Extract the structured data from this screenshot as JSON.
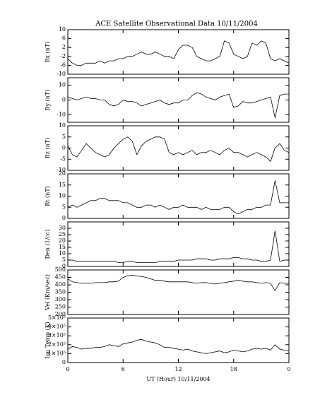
{
  "title": "ACE Satellite Observational Data   10/11/2004",
  "chart_data": [
    {
      "type": "line",
      "ylabel": "Bx (nT)",
      "color": "#000000",
      "xlim": [
        0,
        24
      ],
      "ylim": [
        -10,
        10
      ],
      "yticks": [
        10,
        6,
        2,
        -2,
        -6,
        -10
      ],
      "x": [
        0,
        0.5,
        1,
        1.5,
        2,
        2.5,
        3,
        3.5,
        4,
        4.5,
        5,
        5.5,
        6,
        6.5,
        7,
        7.5,
        8,
        8.5,
        9,
        9.5,
        10,
        10.5,
        11,
        11.5,
        12,
        12.5,
        13,
        13.5,
        14,
        14.5,
        15,
        15.5,
        16,
        16.5,
        17,
        17.5,
        18,
        18.5,
        19,
        19.5,
        20,
        20.5,
        21,
        21.5,
        22,
        22.5,
        23,
        23.5,
        24
      ],
      "values": [
        -3,
        -5,
        -6,
        -6,
        -5,
        -5,
        -5,
        -4,
        -5,
        -4,
        -4,
        -3,
        -3,
        -2,
        -2,
        -1,
        0,
        -1,
        -1,
        0,
        -1,
        -2,
        -2,
        -3,
        1,
        3,
        3,
        2,
        -2,
        -3,
        -4,
        -4,
        -3,
        -2,
        5,
        4,
        -1,
        -2,
        -3,
        -2,
        4,
        3,
        5,
        4,
        -3,
        -4,
        -3,
        -4,
        -5
      ]
    },
    {
      "type": "line",
      "ylabel": "By (nT)",
      "color": "#000000",
      "xlim": [
        0,
        24
      ],
      "ylim": [
        -15,
        15
      ],
      "yticks": [
        10,
        0,
        -10
      ],
      "x": [
        0,
        0.5,
        1,
        1.5,
        2,
        2.5,
        3,
        3.5,
        4,
        4.5,
        5,
        5.5,
        6,
        6.5,
        7,
        7.5,
        8,
        8.5,
        9,
        9.5,
        10,
        10.5,
        11,
        11.5,
        12,
        12.5,
        13,
        13.5,
        14,
        14.5,
        15,
        15.5,
        16,
        16.5,
        17,
        17.5,
        18,
        18.5,
        19,
        19.5,
        20,
        20.5,
        21,
        21.5,
        22,
        22.5,
        23,
        23.5,
        24
      ],
      "values": [
        2,
        1,
        0,
        1,
        2,
        1,
        1,
        0,
        0,
        -3,
        -4,
        -3,
        0,
        -1,
        -1,
        -2,
        -4,
        -3,
        -2,
        -1,
        0,
        -2,
        -3,
        -2,
        -2,
        0,
        0,
        3,
        5,
        4,
        2,
        1,
        0,
        2,
        3,
        4,
        -5,
        -4,
        -1,
        -2,
        -2,
        -1,
        0,
        1,
        2,
        -12,
        3,
        4,
        4
      ]
    },
    {
      "type": "line",
      "ylabel": "Bz (nT)",
      "color": "#000000",
      "xlim": [
        0,
        24
      ],
      "ylim": [
        -10,
        10
      ],
      "yticks": [
        10,
        5,
        0,
        -5,
        -10
      ],
      "x": [
        0,
        0.5,
        1,
        1.5,
        2,
        2.5,
        3,
        3.5,
        4,
        4.5,
        5,
        5.5,
        6,
        6.5,
        7,
        7.5,
        8,
        8.5,
        9,
        9.5,
        10,
        10.5,
        11,
        11.5,
        12,
        12.5,
        13,
        13.5,
        14,
        14.5,
        15,
        15.5,
        16,
        16.5,
        17,
        17.5,
        18,
        18.5,
        19,
        19.5,
        20,
        20.5,
        21,
        21.5,
        22,
        22.5,
        23,
        23.5,
        24
      ],
      "values": [
        1,
        -3,
        -4,
        -1,
        2,
        0,
        -2,
        -3,
        -4,
        -3,
        0,
        2,
        4,
        5,
        3,
        -3,
        1,
        3,
        4,
        5,
        5,
        4,
        -2,
        -3,
        -2,
        -3,
        -2,
        -1,
        -3,
        -2,
        -2,
        -1,
        -2,
        -3,
        -1,
        0,
        -2,
        -2,
        -3,
        -4,
        -3,
        -2,
        -3,
        -4,
        -6,
        0,
        2,
        -1,
        -2
      ]
    },
    {
      "type": "line",
      "ylabel": "Bt (nT)",
      "color": "#000000",
      "xlim": [
        0,
        24
      ],
      "ylim": [
        0,
        20
      ],
      "yticks": [
        20,
        15,
        10,
        5,
        0
      ],
      "x": [
        0,
        0.5,
        1,
        1.5,
        2,
        2.5,
        3,
        3.5,
        4,
        4.5,
        5,
        5.5,
        6,
        6.5,
        7,
        7.5,
        8,
        8.5,
        9,
        9.5,
        10,
        10.5,
        11,
        11.5,
        12,
        12.5,
        13,
        13.5,
        14,
        14.5,
        15,
        15.5,
        16,
        16.5,
        17,
        17.5,
        18,
        18.5,
        19,
        19.5,
        20,
        20.5,
        21,
        21.5,
        22,
        22.5,
        23,
        23.5,
        24
      ],
      "values": [
        5,
        6,
        5,
        6,
        7,
        8,
        8,
        9,
        9,
        8,
        8,
        8,
        7,
        7,
        6,
        5,
        5,
        6,
        6,
        5,
        6,
        5,
        4,
        5,
        5,
        6,
        5,
        5,
        5,
        4,
        5,
        4,
        4,
        4,
        5,
        5,
        3,
        2,
        3,
        4,
        4,
        5,
        5,
        6,
        6,
        17,
        7,
        7,
        7
      ]
    },
    {
      "type": "line",
      "ylabel": "Den (1/cc)",
      "color": "#000000",
      "xlim": [
        0,
        24
      ],
      "ylim": [
        0,
        35
      ],
      "yticks": [
        30,
        25,
        20,
        15,
        10,
        5,
        0
      ],
      "x": [
        0,
        0.5,
        1,
        1.5,
        2,
        2.5,
        3,
        3.5,
        4,
        4.5,
        5,
        5.5,
        6,
        6.5,
        7,
        7.5,
        8,
        8.5,
        9,
        9.5,
        10,
        10.5,
        11,
        11.5,
        12,
        12.5,
        13,
        13.5,
        14,
        14.5,
        15,
        15.5,
        16,
        16.5,
        17,
        17.5,
        18,
        18.5,
        19,
        19.5,
        20,
        20.5,
        21,
        21.5,
        22,
        22.5,
        23,
        23.5,
        24
      ],
      "values": [
        5,
        5,
        4,
        4,
        4,
        4,
        4,
        4,
        4,
        4,
        4,
        3,
        3,
        4,
        4,
        3,
        3,
        3,
        3,
        3,
        4,
        4,
        4,
        4,
        5,
        5,
        5,
        5,
        6,
        6,
        6,
        5,
        5,
        6,
        6,
        6,
        7,
        7,
        6,
        6,
        5,
        5,
        4,
        4,
        5,
        28,
        4,
        5,
        5
      ]
    },
    {
      "type": "line",
      "ylabel": "Vel (Km/sec)",
      "color": "#000000",
      "xlim": [
        0,
        24
      ],
      "ylim": [
        200,
        500
      ],
      "yticks": [
        500,
        450,
        400,
        350,
        300,
        250,
        200
      ],
      "x": [
        0,
        0.5,
        1,
        1.5,
        2,
        2.5,
        3,
        3.5,
        4,
        4.5,
        5,
        5.5,
        6,
        6.5,
        7,
        7.5,
        8,
        8.5,
        9,
        9.5,
        10,
        10.5,
        11,
        11.5,
        12,
        12.5,
        13,
        13.5,
        14,
        14.5,
        15,
        15.5,
        16,
        16.5,
        17,
        17.5,
        18,
        18.5,
        19,
        19.5,
        20,
        20.5,
        21,
        21.5,
        22,
        22.5,
        23,
        23.5,
        24
      ],
      "values": [
        440,
        420,
        415,
        410,
        410,
        410,
        415,
        415,
        415,
        420,
        420,
        425,
        450,
        460,
        465,
        460,
        455,
        450,
        440,
        430,
        430,
        425,
        420,
        420,
        420,
        420,
        420,
        415,
        410,
        415,
        415,
        410,
        405,
        410,
        415,
        420,
        425,
        430,
        425,
        420,
        420,
        415,
        410,
        415,
        410,
        360,
        415,
        410,
        410
      ]
    },
    {
      "type": "line",
      "ylabel": "Ion Temp (K)",
      "color": "#000000",
      "xlim": [
        0,
        24
      ],
      "ylim": [
        0,
        500000
      ],
      "yticks": [
        {
          "value": 500000,
          "label": "5×10⁵"
        },
        {
          "value": 400000,
          "label": "4×10⁵"
        },
        {
          "value": 300000,
          "label": "3×10⁵"
        },
        {
          "value": 200000,
          "label": "2×10⁵"
        },
        {
          "value": 100000,
          "label": "1×10⁵"
        },
        0
      ],
      "xlabel": "UT (Hour)   10/11/2004",
      "xticks": [
        0,
        6,
        12,
        18,
        {
          "value": 24,
          "label": "0"
        }
      ],
      "x": [
        0,
        0.5,
        1,
        1.5,
        2,
        2.5,
        3,
        3.5,
        4,
        4.5,
        5,
        5.5,
        6,
        6.5,
        7,
        7.5,
        8,
        8.5,
        9,
        9.5,
        10,
        10.5,
        11,
        11.5,
        12,
        12.5,
        13,
        13.5,
        14,
        14.5,
        15,
        15.5,
        16,
        16.5,
        17,
        17.5,
        18,
        18.5,
        19,
        19.5,
        20,
        20.5,
        21,
        21.5,
        22,
        22.5,
        23,
        23.5,
        24
      ],
      "values": [
        150000,
        180000,
        170000,
        150000,
        160000,
        160000,
        170000,
        170000,
        180000,
        200000,
        190000,
        180000,
        210000,
        220000,
        230000,
        250000,
        260000,
        240000,
        230000,
        220000,
        200000,
        170000,
        170000,
        160000,
        150000,
        140000,
        150000,
        130000,
        120000,
        110000,
        100000,
        110000,
        120000,
        130000,
        110000,
        120000,
        140000,
        130000,
        120000,
        130000,
        150000,
        160000,
        150000,
        160000,
        140000,
        200000,
        150000,
        140000,
        130000
      ]
    }
  ]
}
